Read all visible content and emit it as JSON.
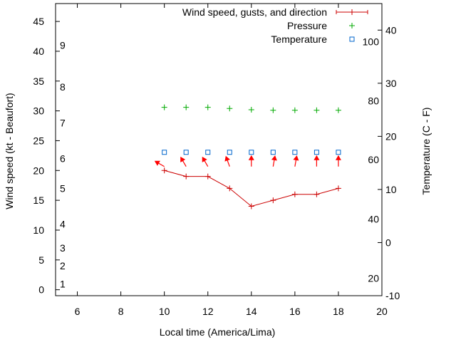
{
  "chart_data": {
    "type": "line",
    "xlabel": "Local time (America/Lima)",
    "ylabel_left": "Wind speed (kt - Beaufort)",
    "ylabel_right": "Temperature (C - F)",
    "xlim": [
      5,
      20
    ],
    "ylim_left": [
      -1,
      48
    ],
    "ylim_right": [
      -10,
      45
    ],
    "x_ticks": [
      6,
      8,
      10,
      12,
      14,
      16,
      18,
      20
    ],
    "y_left_ticks": [
      0,
      5,
      10,
      15,
      20,
      25,
      30,
      35,
      40,
      45
    ],
    "y_right_ticks": [
      -10,
      0,
      10,
      20,
      30,
      40
    ],
    "beaufort_labels": [
      {
        "label": "1",
        "speed": 1
      },
      {
        "label": "2",
        "speed": 4
      },
      {
        "label": "3",
        "speed": 7
      },
      {
        "label": "4",
        "speed": 11
      },
      {
        "label": "5",
        "speed": 17
      },
      {
        "label": "6",
        "speed": 22
      },
      {
        "label": "7",
        "speed": 28
      },
      {
        "label": "8",
        "speed": 34
      },
      {
        "label": "9",
        "speed": 41
      }
    ],
    "fahrenheit_labels": [
      {
        "label": "20",
        "celsius": -6.7
      },
      {
        "label": "40",
        "celsius": 4.4
      },
      {
        "label": "60",
        "celsius": 15.6
      },
      {
        "label": "80",
        "celsius": 26.7
      },
      {
        "label": "100",
        "celsius": 37.8
      }
    ],
    "legend": {
      "position": "top-right",
      "entries": [
        "Wind speed, gusts, and direction",
        "Pressure",
        "Temperature"
      ]
    },
    "colors": {
      "wind": "#cc0000",
      "pressure": "#00aa00",
      "temperature": "#0066cc",
      "direction": "#ff0000",
      "axis": "#000000"
    },
    "series": [
      {
        "name": "Wind speed, gusts, and direction",
        "x": [
          10,
          11,
          12,
          13,
          14,
          15,
          16,
          17,
          18
        ],
        "y": [
          20,
          19,
          19,
          17,
          14,
          15,
          16,
          16,
          17
        ],
        "direction_deg": [
          300,
          330,
          330,
          340,
          0,
          10,
          10,
          0,
          0
        ]
      },
      {
        "name": "Pressure",
        "x": [
          10,
          11,
          12,
          13,
          14,
          15,
          16,
          17,
          18
        ],
        "y": [
          30.6,
          30.6,
          30.6,
          30.4,
          30.2,
          30.1,
          30.1,
          30.1,
          30.1
        ]
      },
      {
        "name": "Temperature",
        "x": [
          10,
          11,
          12,
          13,
          14,
          15,
          16,
          17,
          18
        ],
        "y_celsius": [
          17,
          17,
          17,
          17,
          17,
          17,
          17,
          17,
          17
        ]
      }
    ]
  }
}
